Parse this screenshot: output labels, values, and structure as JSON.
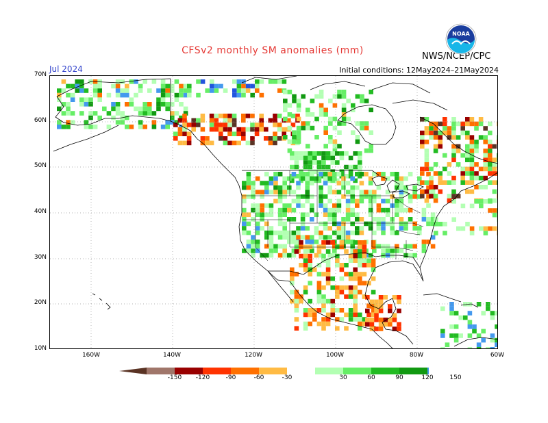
{
  "title": "CFSv2 monthly SM anomalies (mm)",
  "month": "Jul 2024",
  "initial_conditions": "Initial conditions: 12May2024–21May2024",
  "agency": "NWS/NCEP/CPC",
  "logo_text": "NOAA",
  "lat_labels": [
    "70N",
    "60N",
    "50N",
    "40N",
    "30N",
    "20N",
    "10N"
  ],
  "lon_labels": [
    "160W",
    "140W",
    "120W",
    "100W",
    "80W",
    "60W"
  ],
  "colorbar": {
    "labels": [
      "-150",
      "-120",
      "-90",
      "-60",
      "-30",
      "30",
      "60",
      "90",
      "120",
      "150"
    ],
    "colors": [
      "#5a3324",
      "#a0766a",
      "#990000",
      "#ff3300",
      "#ff7000",
      "#ffbb44",
      "#ffffff",
      "#b3ffb3",
      "#66ee66",
      "#22bb22",
      "#119911",
      "#4499ee",
      "#2255dd"
    ]
  },
  "colors": {
    "title": "#e53935",
    "month": "#3344cc",
    "grid": "#999999",
    "land_outline": "#000000"
  }
}
